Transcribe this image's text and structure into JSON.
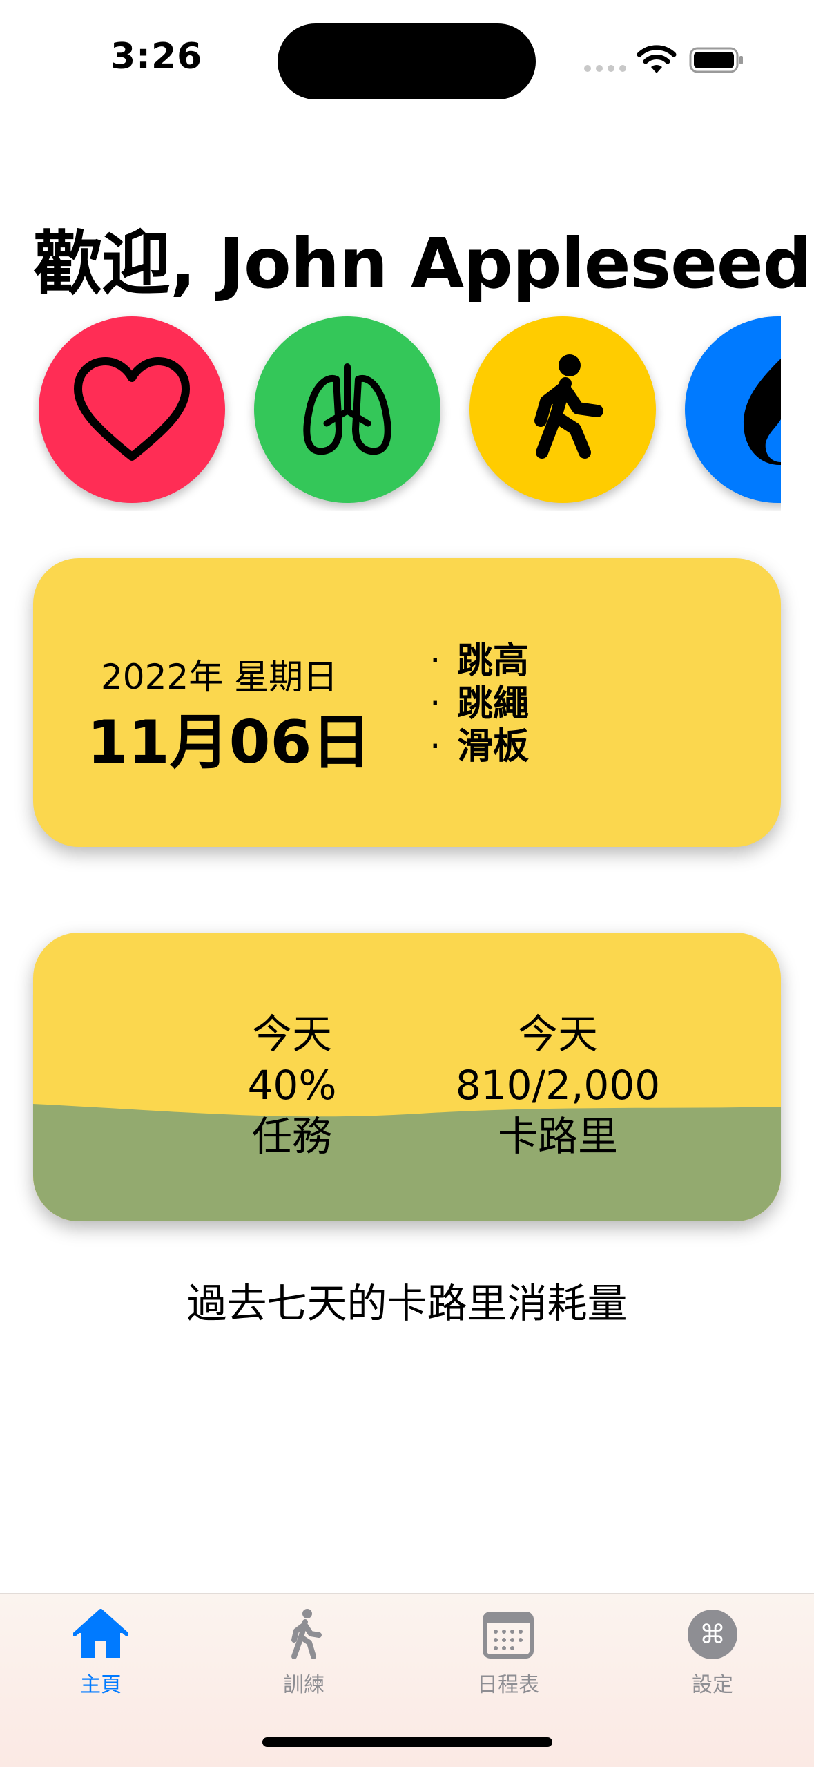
{
  "status_bar": {
    "time": "3:26"
  },
  "header": {
    "title": "歡迎, John Appleseed"
  },
  "categories": [
    {
      "icon": "heart-icon",
      "color": "#ff2d55"
    },
    {
      "icon": "lungs-icon",
      "color": "#34c759"
    },
    {
      "icon": "figure-walk-icon",
      "color": "#ffcc00"
    },
    {
      "icon": "flame-icon",
      "color": "#007aff"
    }
  ],
  "date_card": {
    "year_weekday": "2022年 星期日",
    "date": "11月06日",
    "activities": [
      "跳高",
      "跳繩",
      "滑板"
    ],
    "bullet": "·",
    "background": "#fbd74e"
  },
  "progress_card": {
    "left": {
      "line1": "今天",
      "line2": "40%",
      "line3": "任務"
    },
    "right": {
      "line1": "今天",
      "line2": "810/2,000",
      "line3": "卡路里"
    },
    "progress_fraction": 0.4,
    "wave_color": "#93aa6f",
    "background": "#fbd74e"
  },
  "chart": {
    "caption": "過去七天的卡路里消耗量"
  },
  "tab_bar": {
    "active_color": "#007aff",
    "inactive_color": "#8e8e93",
    "tabs": [
      {
        "label": "主頁",
        "icon": "house-icon",
        "active": true
      },
      {
        "label": "訓練",
        "icon": "figure-walk-icon",
        "active": false
      },
      {
        "label": "日程表",
        "icon": "calendar-icon",
        "active": false
      },
      {
        "label": "設定",
        "icon": "command-icon",
        "active": false
      }
    ]
  }
}
